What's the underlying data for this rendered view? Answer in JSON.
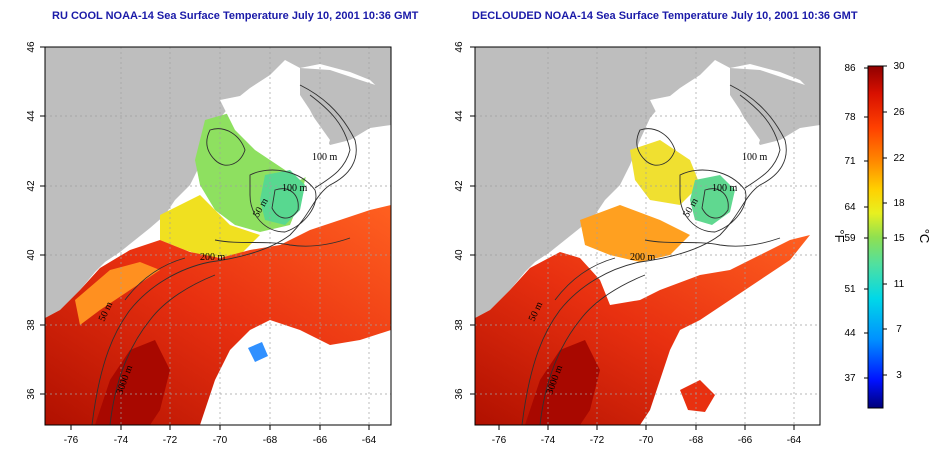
{
  "titles": {
    "left": "RU COOL NOAA-14 Sea Surface Temperature July 10, 2001 10:36 GMT",
    "right": "DECLOUDED NOAA-14 Sea Surface Temperature July 10, 2001 10:36 GMT"
  },
  "map_axes": {
    "lon_ticks": [
      "-76",
      "-74",
      "-72",
      "-70",
      "-68",
      "-66",
      "-64"
    ],
    "lat_ticks": [
      "46",
      "44",
      "42",
      "40",
      "38",
      "36"
    ]
  },
  "contour_labels": [
    "100 m",
    "100 m",
    "50 m",
    "200 m",
    "50 m",
    "3000 m"
  ],
  "colorbar": {
    "fahrenheit_ticks": [
      "86",
      "78",
      "71",
      "64",
      "59",
      "51",
      "44",
      "37"
    ],
    "celsius_ticks": [
      "30",
      "26",
      "22",
      "18",
      "15",
      "11",
      "7",
      "3"
    ],
    "fahrenheit_unit": "°F",
    "celsius_unit": "°C",
    "colors": [
      "#000080",
      "#0000ff",
      "#0080ff",
      "#00d0ff",
      "#40e0a0",
      "#80e060",
      "#d0f040",
      "#ffe000",
      "#ff9000",
      "#ff4000",
      "#e01000",
      "#8b0000"
    ]
  },
  "colors": {
    "land": "#bebebe",
    "no_data": "#ffffff",
    "title": "#1a1aa8"
  }
}
